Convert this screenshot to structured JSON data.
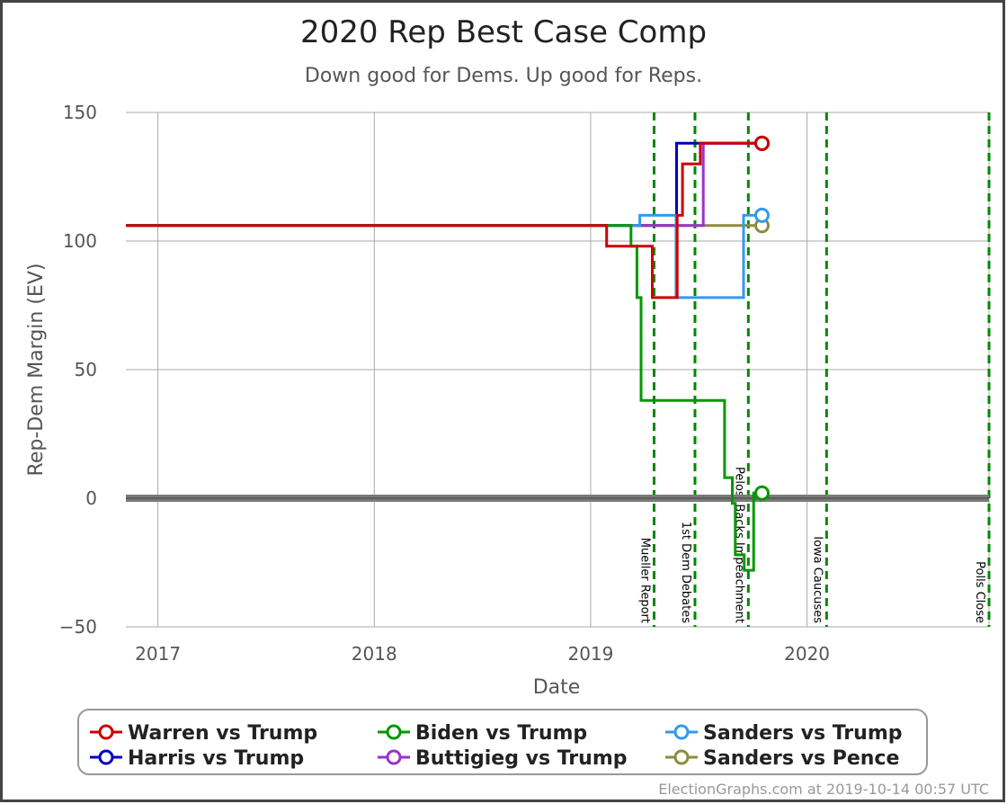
{
  "chart_data": {
    "type": "line",
    "title": "2020 Rep Best Case Comp",
    "subtitle": "Down good for Dems. Up good for Reps.",
    "xlabel": "Date",
    "ylabel": "Rep-Dem Margin (EV)",
    "xlim": [
      "2016-11-08",
      "2020-11-03"
    ],
    "ylim": [
      -50,
      150
    ],
    "x_ticks": [
      {
        "label": "2017",
        "date": "2017-01-01"
      },
      {
        "label": "2018",
        "date": "2018-01-01"
      },
      {
        "label": "2019",
        "date": "2019-01-01"
      },
      {
        "label": "2020",
        "date": "2020-01-01"
      }
    ],
    "y_ticks": [
      -50,
      0,
      50,
      100,
      150
    ],
    "grid": true,
    "zero_line": 0,
    "events": [
      {
        "label": "Mueller Report",
        "date": "2019-04-18"
      },
      {
        "label": "1st Dem Debates",
        "date": "2019-06-26"
      },
      {
        "label": "Pelosi Backs Impeachment",
        "date": "2019-09-24"
      },
      {
        "label": "Iowa Caucuses",
        "date": "2020-02-03"
      },
      {
        "label": "Polls Close",
        "date": "2020-11-03"
      }
    ],
    "series": [
      {
        "name": "Harris vs Trump",
        "color": "#0000c0",
        "step": true,
        "points": [
          [
            "2016-11-08",
            106
          ],
          [
            "2019-02-05",
            106
          ],
          [
            "2019-05-26",
            138
          ],
          [
            "2019-10-14",
            138
          ]
        ]
      },
      {
        "name": "Sanders vs Pence",
        "color": "#8c8c3c",
        "step": true,
        "points": [
          [
            "2016-11-08",
            106
          ],
          [
            "2019-10-14",
            106
          ]
        ]
      },
      {
        "name": "Buttigieg vs Trump",
        "color": "#9932cc",
        "step": true,
        "points": [
          [
            "2016-11-08",
            106
          ],
          [
            "2019-07-10",
            138
          ],
          [
            "2019-10-14",
            138
          ]
        ]
      },
      {
        "name": "Sanders vs Trump",
        "color": "#3399ee",
        "step": true,
        "points": [
          [
            "2016-11-08",
            106
          ],
          [
            "2019-03-25",
            110
          ],
          [
            "2019-05-25",
            78
          ],
          [
            "2019-09-16",
            110
          ],
          [
            "2019-10-14",
            110
          ]
        ]
      },
      {
        "name": "Biden vs Trump",
        "color": "#009900",
        "step": true,
        "points": [
          [
            "2016-11-08",
            106
          ],
          [
            "2019-03-10",
            98
          ],
          [
            "2019-03-20",
            78
          ],
          [
            "2019-03-27",
            38
          ],
          [
            "2019-08-15",
            8
          ],
          [
            "2019-08-28",
            -2
          ],
          [
            "2019-09-02",
            -22
          ],
          [
            "2019-09-17",
            -28
          ],
          [
            "2019-10-03",
            2
          ],
          [
            "2019-10-14",
            2
          ]
        ]
      },
      {
        "name": "Warren vs Trump",
        "color": "#cc0000",
        "step": true,
        "points": [
          [
            "2016-11-08",
            106
          ],
          [
            "2019-01-28",
            98
          ],
          [
            "2019-04-15",
            78
          ],
          [
            "2019-05-27",
            110
          ],
          [
            "2019-06-05",
            130
          ],
          [
            "2019-07-05",
            138
          ],
          [
            "2019-10-14",
            138
          ]
        ]
      }
    ],
    "legend_position": "bottom",
    "legend_order": [
      "Warren vs Trump",
      "Biden vs Trump",
      "Sanders vs Trump",
      "Harris vs Trump",
      "Buttigieg vs Trump",
      "Sanders vs Pence"
    ]
  },
  "credit": "ElectionGraphs.com at 2019-10-14 00:57 UTC"
}
